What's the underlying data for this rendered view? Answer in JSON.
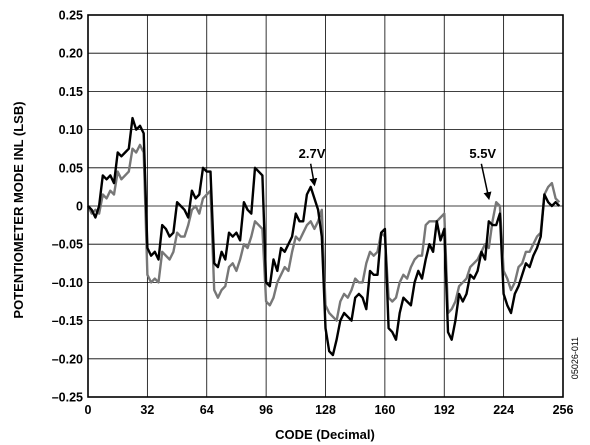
{
  "chart_data": {
    "type": "line",
    "xlabel": "CODE (Decimal)",
    "ylabel": "POTENTIOMETER MODE INL (LSB)",
    "xlim": [
      0,
      256
    ],
    "ylim": [
      -0.25,
      0.25
    ],
    "x_ticks": [
      0,
      32,
      64,
      96,
      128,
      160,
      192,
      224,
      256
    ],
    "x_tick_labels": [
      "0",
      "32",
      "64",
      "96",
      "128",
      "160",
      "192",
      "224",
      "256"
    ],
    "y_ticks": [
      0.25,
      0.2,
      0.15,
      0.1,
      0.05,
      0,
      -0.05,
      -0.1,
      -0.15,
      -0.2,
      -0.25
    ],
    "y_tick_labels": [
      "0.25",
      "0.20",
      "0.15",
      "0.10",
      "0.05",
      "0",
      "–0.05",
      "–0.10",
      "–0.15",
      "–0.20",
      "–0.25"
    ],
    "grid": true,
    "figure_id": "05026-011",
    "colors": {
      "series_2_7v": "#000000",
      "series_5_5v": "#777777"
    },
    "annotations": [
      {
        "text": "2.7V",
        "x": 120,
        "y": 0.05,
        "arrow_to": [
          122,
          0.023
        ]
      },
      {
        "text": "5.5V",
        "x": 212,
        "y": 0.05,
        "arrow_to": [
          216,
          0.005
        ]
      }
    ],
    "series": [
      {
        "name": "2.7V",
        "x": [
          0,
          2,
          4,
          6,
          8,
          10,
          12,
          14,
          16,
          18,
          20,
          22,
          24,
          26,
          28,
          30,
          32,
          34,
          36,
          38,
          40,
          42,
          44,
          46,
          48,
          50,
          52,
          54,
          56,
          58,
          60,
          62,
          64,
          66,
          68,
          70,
          72,
          74,
          76,
          78,
          80,
          82,
          84,
          86,
          88,
          90,
          92,
          94,
          96,
          98,
          100,
          102,
          104,
          106,
          108,
          110,
          112,
          114,
          116,
          118,
          120,
          122,
          124,
          126,
          128,
          130,
          132,
          134,
          136,
          138,
          140,
          142,
          144,
          146,
          148,
          150,
          152,
          154,
          156,
          158,
          160,
          162,
          164,
          166,
          168,
          170,
          172,
          174,
          176,
          178,
          180,
          182,
          184,
          186,
          188,
          190,
          192,
          194,
          196,
          198,
          200,
          202,
          204,
          206,
          208,
          210,
          212,
          214,
          216,
          218,
          220,
          222,
          224,
          226,
          228,
          230,
          232,
          234,
          236,
          238,
          240,
          242,
          244,
          246,
          248,
          250,
          252,
          254
        ],
        "y": [
          0.0,
          -0.005,
          -0.015,
          0.0,
          0.04,
          0.035,
          0.04,
          0.03,
          0.07,
          0.065,
          0.07,
          0.075,
          0.115,
          0.1,
          0.105,
          0.095,
          -0.055,
          -0.065,
          -0.06,
          -0.07,
          -0.025,
          -0.03,
          -0.04,
          -0.035,
          0.005,
          0.0,
          -0.005,
          -0.015,
          0.02,
          0.01,
          0.015,
          0.05,
          0.045,
          0.045,
          -0.075,
          -0.08,
          -0.06,
          -0.07,
          -0.035,
          -0.04,
          -0.035,
          -0.045,
          0.005,
          -0.005,
          -0.01,
          0.05,
          0.045,
          0.04,
          -0.1,
          -0.105,
          -0.07,
          -0.085,
          -0.055,
          -0.06,
          -0.05,
          -0.04,
          -0.01,
          -0.02,
          -0.02,
          0.015,
          0.025,
          0.01,
          -0.005,
          -0.04,
          -0.16,
          -0.19,
          -0.195,
          -0.175,
          -0.15,
          -0.14,
          -0.145,
          -0.15,
          -0.12,
          -0.115,
          -0.12,
          -0.135,
          -0.085,
          -0.09,
          -0.09,
          -0.035,
          -0.03,
          -0.16,
          -0.165,
          -0.175,
          -0.14,
          -0.12,
          -0.125,
          -0.13,
          -0.1,
          -0.085,
          -0.095,
          -0.07,
          -0.05,
          -0.06,
          -0.02,
          -0.045,
          -0.03,
          -0.165,
          -0.175,
          -0.15,
          -0.115,
          -0.125,
          -0.115,
          -0.09,
          -0.095,
          -0.085,
          -0.06,
          -0.07,
          -0.02,
          -0.025,
          -0.025,
          -0.01,
          -0.115,
          -0.13,
          -0.14,
          -0.115,
          -0.105,
          -0.09,
          -0.075,
          -0.08,
          -0.065,
          -0.055,
          -0.04,
          0.015,
          0.005,
          0.0,
          0.005,
          0.0
        ]
      },
      {
        "name": "5.5V",
        "x": [
          0,
          2,
          4,
          6,
          8,
          10,
          12,
          14,
          16,
          18,
          20,
          22,
          24,
          26,
          28,
          30,
          32,
          34,
          36,
          38,
          40,
          42,
          44,
          46,
          48,
          50,
          52,
          54,
          56,
          58,
          60,
          62,
          64,
          66,
          68,
          70,
          72,
          74,
          76,
          78,
          80,
          82,
          84,
          86,
          88,
          90,
          92,
          94,
          96,
          98,
          100,
          102,
          104,
          106,
          108,
          110,
          112,
          114,
          116,
          118,
          120,
          122,
          124,
          126,
          128,
          130,
          132,
          134,
          136,
          138,
          140,
          142,
          144,
          146,
          148,
          150,
          152,
          154,
          156,
          158,
          160,
          162,
          164,
          166,
          168,
          170,
          172,
          174,
          176,
          178,
          180,
          182,
          184,
          186,
          188,
          190,
          192,
          194,
          196,
          198,
          200,
          202,
          204,
          206,
          208,
          210,
          212,
          214,
          216,
          218,
          220,
          222,
          224,
          226,
          228,
          230,
          232,
          234,
          236,
          238,
          240,
          242,
          244,
          246,
          248,
          250,
          252,
          254
        ],
        "y": [
          0.0,
          -0.01,
          -0.005,
          -0.01,
          0.015,
          0.01,
          0.02,
          0.015,
          0.045,
          0.035,
          0.04,
          0.045,
          0.075,
          0.07,
          0.08,
          0.07,
          -0.09,
          -0.1,
          -0.095,
          -0.1,
          -0.06,
          -0.065,
          -0.07,
          -0.06,
          -0.035,
          -0.04,
          -0.04,
          -0.025,
          -0.005,
          0.0,
          -0.01,
          0.01,
          0.015,
          0.02,
          -0.11,
          -0.12,
          -0.11,
          -0.105,
          -0.08,
          -0.075,
          -0.085,
          -0.07,
          -0.05,
          -0.055,
          -0.04,
          -0.02,
          -0.025,
          -0.03,
          -0.125,
          -0.13,
          -0.12,
          -0.1,
          -0.09,
          -0.08,
          -0.085,
          -0.06,
          -0.04,
          -0.045,
          -0.035,
          -0.025,
          -0.02,
          -0.03,
          -0.02,
          -0.005,
          -0.13,
          -0.14,
          -0.145,
          -0.15,
          -0.125,
          -0.115,
          -0.12,
          -0.11,
          -0.095,
          -0.1,
          -0.1,
          -0.075,
          -0.06,
          -0.065,
          -0.06,
          -0.035,
          -0.04,
          -0.12,
          -0.125,
          -0.12,
          -0.1,
          -0.09,
          -0.095,
          -0.08,
          -0.07,
          -0.065,
          -0.065,
          -0.025,
          -0.02,
          -0.02,
          -0.02,
          -0.015,
          -0.01,
          -0.14,
          -0.135,
          -0.125,
          -0.105,
          -0.1,
          -0.095,
          -0.08,
          -0.075,
          -0.07,
          -0.06,
          -0.05,
          -0.055,
          -0.02,
          0.005,
          0.0,
          -0.085,
          -0.095,
          -0.11,
          -0.1,
          -0.08,
          -0.075,
          -0.06,
          -0.06,
          -0.05,
          -0.04,
          -0.035,
          0.015,
          0.025,
          0.03,
          0.01,
          0.005
        ]
      }
    ]
  }
}
